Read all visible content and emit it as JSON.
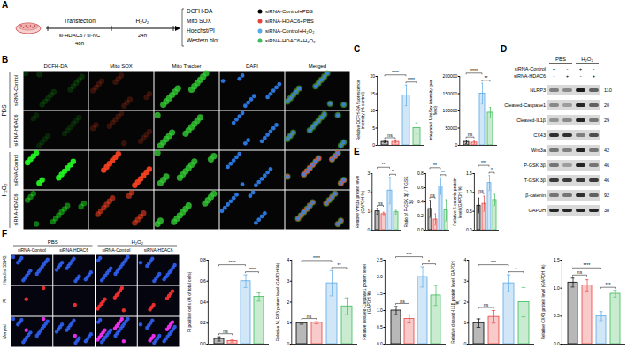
{
  "panel_labels": [
    "A",
    "B",
    "C",
    "D",
    "E",
    "F"
  ],
  "schematic": {
    "steps": [
      "Transfection",
      "H₂O₂"
    ],
    "treatment": "si-HDAC6 / si-NC",
    "durations": [
      "48h",
      "24h"
    ],
    "assays": [
      "DCFH-DA",
      "Mito SOX",
      "Hoechst/PI",
      "Western blot"
    ]
  },
  "groups": [
    {
      "name": "siRNA-Control+PBS",
      "color": "#000000"
    },
    {
      "name": "siRNA-HDAC6+PBS",
      "color": "#e8423f"
    },
    {
      "name": "siRNA-Control+H₂O₂",
      "color": "#5aa9e6"
    },
    {
      "name": "siRNA-HDAC6+H₂O₂",
      "color": "#3dbb5a"
    }
  ],
  "images_B": {
    "columns": [
      "DCFH-DA",
      "Mito SOX",
      "Mito Tracker",
      "DAPI",
      "Merged"
    ],
    "row_groups": [
      {
        "label": "PBS",
        "rows": [
          "siRNA-Control",
          "siRNA-HDAC6"
        ]
      },
      {
        "label": "H₂O₂",
        "rows": [
          "siRNA-Control",
          "siRNA-HDAC6"
        ]
      }
    ]
  },
  "blot": {
    "conditions": [
      "PBS",
      "H₂O₂"
    ],
    "lanes": [
      {
        "label": "siRNA-Control",
        "signs": [
          "+",
          "-",
          "+",
          "-"
        ]
      },
      {
        "label": "siRNA-HDAC6",
        "signs": [
          "-",
          "+",
          "-",
          "+"
        ]
      }
    ],
    "bands": [
      {
        "name": "NLRP3",
        "kda": 110
      },
      {
        "name": "Cleaved-Caspase1",
        "kda": 20
      },
      {
        "name": "Cleaved-IL1β",
        "kda": 29
      },
      {
        "name": "CX43"
      },
      {
        "name": "Wnt3a",
        "kda": 42
      },
      {
        "name": "P-GSK 3β",
        "kda": 46
      },
      {
        "name": "T-GSK 3β",
        "kda": 46
      },
      {
        "name": "β-catenin",
        "kda": 92
      },
      {
        "name": "GAPDH",
        "kda": 38
      }
    ]
  },
  "images_F": {
    "rows": [
      "Hoechst 33342",
      "PI",
      "Merged"
    ],
    "column_groups": [
      {
        "label": "PBS",
        "columns": [
          "siRNA-Control",
          "siRNA-HDAC6"
        ]
      },
      {
        "label": "H₂O₂",
        "columns": [
          "siRNA-Control",
          "siRNA-HDAC6"
        ]
      }
    ]
  },
  "chart_data": [
    {
      "type": "bar",
      "y_label": "Relative DCFH-DA fluorescence intensity (% control)",
      "categories": [
        null,
        null,
        null,
        null
      ],
      "values": [
        1.0,
        1.0,
        14.5,
        5.0
      ],
      "errors": [
        0.2,
        0.3,
        3.0,
        1.5
      ],
      "colors": [
        "#000000",
        "#e8423f",
        "#5aa9e6",
        "#3dbb5a"
      ],
      "ylim": [
        0,
        20
      ],
      "yticks": [
        0,
        5,
        10,
        15,
        20
      ],
      "tick_labels": "y",
      "annotations": [
        {
          "from": 0,
          "to": 1,
          "text": "ns"
        },
        {
          "from": 0,
          "to": 2,
          "text": "****"
        },
        {
          "from": 2,
          "to": 3,
          "text": "****"
        }
      ]
    },
    {
      "type": "bar",
      "y_label": "Integrated MitoSox intensity (per field)",
      "categories": [
        null,
        null,
        null,
        null
      ],
      "values": [
        10000,
        8000,
        150000,
        95000
      ],
      "errors": [
        5000,
        4000,
        30000,
        15000
      ],
      "colors": [
        "#000000",
        "#e8423f",
        "#5aa9e6",
        "#3dbb5a"
      ],
      "ylim": [
        0,
        200000
      ],
      "yticks": [
        0,
        50000,
        100000,
        150000,
        200000
      ],
      "tick_labels": "y",
      "annotations": [
        {
          "from": 0,
          "to": 1,
          "text": "ns"
        },
        {
          "from": 0,
          "to": 2,
          "text": "****"
        },
        {
          "from": 2,
          "to": 3,
          "text": "**"
        }
      ]
    },
    {
      "type": "bar",
      "y_label": "Relative Wnt3a protein level (GAPDH %)",
      "categories": [
        null,
        null,
        null,
        null
      ],
      "values": [
        1.0,
        0.85,
        2.1,
        0.95
      ],
      "errors": [
        0.15,
        0.1,
        0.7,
        0.1
      ],
      "colors": [
        "#000000",
        "#e8423f",
        "#5aa9e6",
        "#3dbb5a"
      ],
      "ylim": [
        0,
        3
      ],
      "yticks": [
        0,
        1,
        2,
        3
      ],
      "tick_labels": "y",
      "annotations": [
        {
          "from": 0,
          "to": 1,
          "text": "ns"
        },
        {
          "from": 0,
          "to": 2,
          "text": "**"
        },
        {
          "from": 2,
          "to": 3,
          "text": "*"
        }
      ]
    },
    {
      "type": "bar",
      "y_label": "Ratio of P-GSK 3β / T-GSK 3β",
      "categories": [
        null,
        null,
        null,
        null
      ],
      "values": [
        0.3,
        0.15,
        0.62,
        0.28
      ],
      "errors": [
        0.12,
        0.08,
        0.12,
        0.15
      ],
      "colors": [
        "#000000",
        "#e8423f",
        "#5aa9e6",
        "#3dbb5a"
      ],
      "ylim": [
        0,
        0.8
      ],
      "yticks": [
        {
          "value": 0,
          "label": "0.0"
        },
        0.2,
        0.4,
        0.6,
        0.8
      ],
      "tick_labels": "y",
      "annotations": [
        {
          "from": 0,
          "to": 1,
          "text": "ns"
        },
        {
          "from": 0,
          "to": 2,
          "text": "**"
        },
        {
          "from": 2,
          "to": 3,
          "text": "**"
        }
      ]
    },
    {
      "type": "bar",
      "y_label": "Relative β-catenin protein level (GAPDH %)",
      "categories": [
        null,
        null,
        null,
        null
      ],
      "values": [
        0.65,
        0.7,
        1.25,
        0.8
      ],
      "errors": [
        0.2,
        0.2,
        0.2,
        0.15
      ],
      "colors": [
        "#000000",
        "#e8423f",
        "#5aa9e6",
        "#3dbb5a"
      ],
      "ylim": [
        0,
        1.5
      ],
      "yticks": [
        {
          "value": 0,
          "label": "0.0"
        },
        0.5,
        {
          "value": 1,
          "label": "1.0"
        },
        1.5
      ],
      "tick_labels": "y",
      "annotations": [
        {
          "from": 0,
          "to": 1,
          "text": "ns"
        },
        {
          "from": 0,
          "to": 2,
          "text": "***"
        },
        {
          "from": 2,
          "to": 3,
          "text": "*"
        }
      ]
    },
    {
      "type": "bar",
      "y_label": "PI positive cells (% of total cells)",
      "categories": [
        null,
        null,
        null,
        null
      ],
      "values": [
        0.05,
        0.03,
        0.6,
        0.45
      ],
      "errors": [
        0.02,
        0.01,
        0.06,
        0.04
      ],
      "colors": [
        "#000000",
        "#e8423f",
        "#5aa9e6",
        "#3dbb5a"
      ],
      "ylim": [
        0,
        0.8
      ],
      "yticks": [
        {
          "value": 0,
          "label": "0.0"
        },
        0.2,
        0.4,
        0.6,
        0.8
      ],
      "tick_labels": "y",
      "annotations": [
        {
          "from": 0,
          "to": 1,
          "text": "ns"
        },
        {
          "from": 0,
          "to": 2,
          "text": "****"
        },
        {
          "from": 2,
          "to": 3,
          "text": "****"
        }
      ]
    },
    {
      "type": "bar",
      "y_label": "Relative NLRP3 protein level (GAPDH %)",
      "categories": [
        null,
        null,
        null,
        null
      ],
      "values": [
        1.0,
        1.02,
        2.9,
        1.8
      ],
      "errors": [
        0.05,
        0.05,
        0.6,
        0.4
      ],
      "colors": [
        "#000000",
        "#e8423f",
        "#5aa9e6",
        "#3dbb5a"
      ],
      "ylim": [
        0,
        4
      ],
      "yticks": [
        0,
        1,
        2,
        3,
        4
      ],
      "tick_labels": "y",
      "annotations": [
        {
          "from": 0,
          "to": 1,
          "text": "ns"
        },
        {
          "from": 0,
          "to": 2,
          "text": "****"
        },
        {
          "from": 2,
          "to": 3,
          "text": "**"
        }
      ]
    },
    {
      "type": "bar",
      "y_label": "Relative cleaved-Caspase1 protein level (GAPDH %)",
      "categories": [
        null,
        null,
        null,
        null
      ],
      "values": [
        1.0,
        0.75,
        2.0,
        1.45
      ],
      "errors": [
        0.12,
        0.12,
        0.3,
        0.3
      ],
      "colors": [
        "#000000",
        "#e8423f",
        "#5aa9e6",
        "#3dbb5a"
      ],
      "ylim": [
        0,
        2.5
      ],
      "yticks": [
        {
          "value": 0,
          "label": "0.0"
        },
        0.5,
        {
          "value": 1,
          "label": "1.0"
        },
        1.5,
        {
          "value": 2,
          "label": "2.0"
        },
        2.5
      ],
      "tick_labels": "y",
      "annotations": [
        {
          "from": 0,
          "to": 1,
          "text": "ns"
        },
        {
          "from": 0,
          "to": 2,
          "text": "***"
        },
        {
          "from": 2,
          "to": 3,
          "text": "*"
        }
      ]
    },
    {
      "type": "bar",
      "y_label": "Relative cleaved-IL1β protein level (GAPDH %)",
      "categories": [
        null,
        null,
        null,
        null
      ],
      "values": [
        1.0,
        1.3,
        2.9,
        2.0
      ],
      "errors": [
        0.2,
        0.3,
        0.4,
        0.7
      ],
      "colors": [
        "#000000",
        "#e8423f",
        "#5aa9e6",
        "#3dbb5a"
      ],
      "ylim": [
        0,
        4
      ],
      "yticks": [
        0,
        1,
        2,
        3,
        4
      ],
      "tick_labels": "y",
      "annotations": [
        {
          "from": 0,
          "to": 1,
          "text": "ns"
        },
        {
          "from": 0,
          "to": 2,
          "text": "***"
        },
        {
          "from": 2,
          "to": 3,
          "text": "*"
        }
      ]
    },
    {
      "type": "bar",
      "y_label": "Relative CX43 protein level (GAPDH %)",
      "categories": [
        null,
        null,
        null,
        null
      ],
      "values": [
        1.1,
        1.05,
        0.5,
        0.9
      ],
      "errors": [
        0.08,
        0.1,
        0.08,
        0.06
      ],
      "colors": [
        "#000000",
        "#e8423f",
        "#5aa9e6",
        "#3dbb5a"
      ],
      "ylim": [
        0,
        1.5
      ],
      "yticks": [
        {
          "value": 0,
          "label": "0.0"
        },
        0.5,
        {
          "value": 1,
          "label": "1.0"
        },
        1.5
      ],
      "tick_labels": "y",
      "annotations": [
        {
          "from": 0,
          "to": 1,
          "text": "ns"
        },
        {
          "from": 0,
          "to": 2,
          "text": "****"
        },
        {
          "from": 2,
          "to": 3,
          "text": "***"
        }
      ]
    }
  ]
}
